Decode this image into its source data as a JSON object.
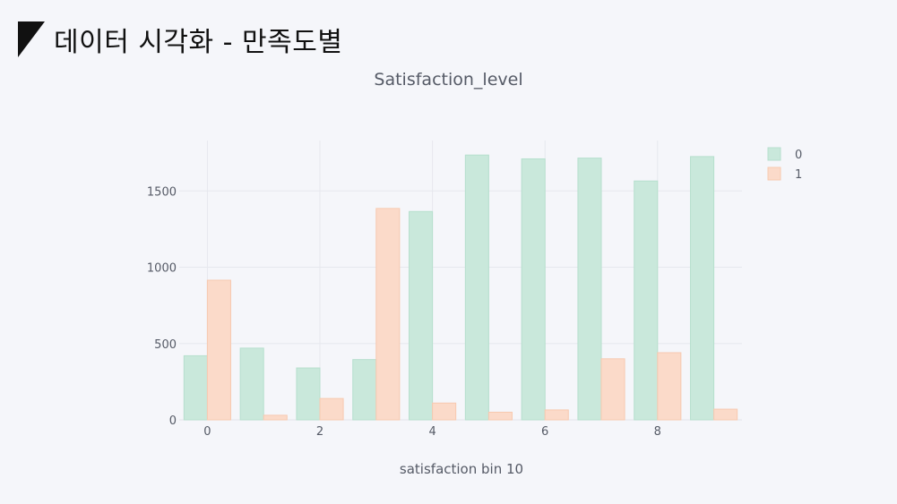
{
  "slide": {
    "title": "데이터 시각화 - 만족도별"
  },
  "chart_data": {
    "type": "bar",
    "title": "Satisfaction_level",
    "xlabel": "satisfaction bin 10",
    "ylabel": "",
    "x": [
      0,
      1,
      2,
      3,
      4,
      5,
      6,
      7,
      8,
      9
    ],
    "x_ticks": [
      0,
      2,
      4,
      6,
      8
    ],
    "y_ticks": [
      0,
      500,
      1000,
      1500
    ],
    "ylim": [
      0,
      1830
    ],
    "grid": true,
    "legend_position": "top-right",
    "series": [
      {
        "name": "0",
        "color": "#c9e8db",
        "stroke": "#b6dfcd",
        "values": [
          420,
          470,
          340,
          395,
          1365,
          1735,
          1710,
          1715,
          1565,
          1725
        ]
      },
      {
        "name": "1",
        "color": "#fbdac9",
        "stroke": "#f7c9b0",
        "values": [
          915,
          30,
          140,
          1385,
          110,
          50,
          65,
          400,
          440,
          70
        ]
      }
    ]
  }
}
